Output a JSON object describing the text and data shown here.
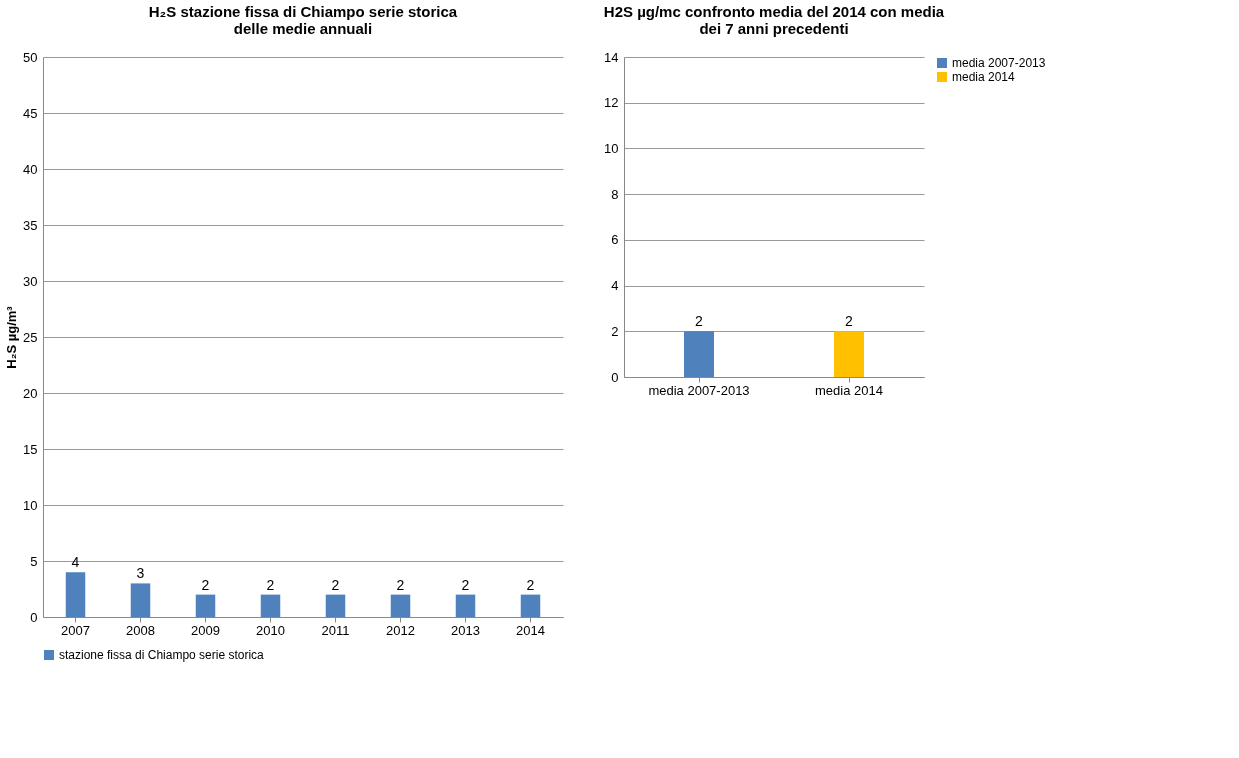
{
  "chart_data": [
    {
      "type": "bar",
      "title": "H₂S stazione fissa di Chiampo serie storica delle medie annuali",
      "ylabel": "H₂S µg/m³",
      "categories": [
        "2007",
        "2008",
        "2009",
        "2010",
        "2011",
        "2012",
        "2013",
        "2014"
      ],
      "series": [
        {
          "name": "stazione fissa di Chiampo serie storica",
          "color": "#4f81bd",
          "values": [
            4,
            3,
            2,
            2,
            2,
            2,
            2,
            2
          ]
        }
      ],
      "ylim": [
        0,
        50
      ],
      "yticks": [
        0,
        5,
        10,
        15,
        20,
        25,
        30,
        35,
        40,
        45,
        50
      ],
      "grid": "y",
      "legend": "bottom",
      "data_labels": true
    },
    {
      "type": "bar",
      "title": "H2S µg/mc confronto media del 2014 con media dei 7 anni precedenti",
      "categories": [
        "media 2007-2013",
        "media 2014"
      ],
      "series": [
        {
          "name": "media 2007-2013",
          "color": "#4f81bd",
          "values": [
            2,
            null
          ]
        },
        {
          "name": "media 2014",
          "color": "#ffc000",
          "values": [
            null,
            2
          ]
        }
      ],
      "ylim": [
        0,
        14
      ],
      "yticks": [
        0,
        2,
        4,
        6,
        8,
        10,
        12,
        14
      ],
      "grid": "y",
      "legend": "right",
      "data_labels": true
    }
  ]
}
